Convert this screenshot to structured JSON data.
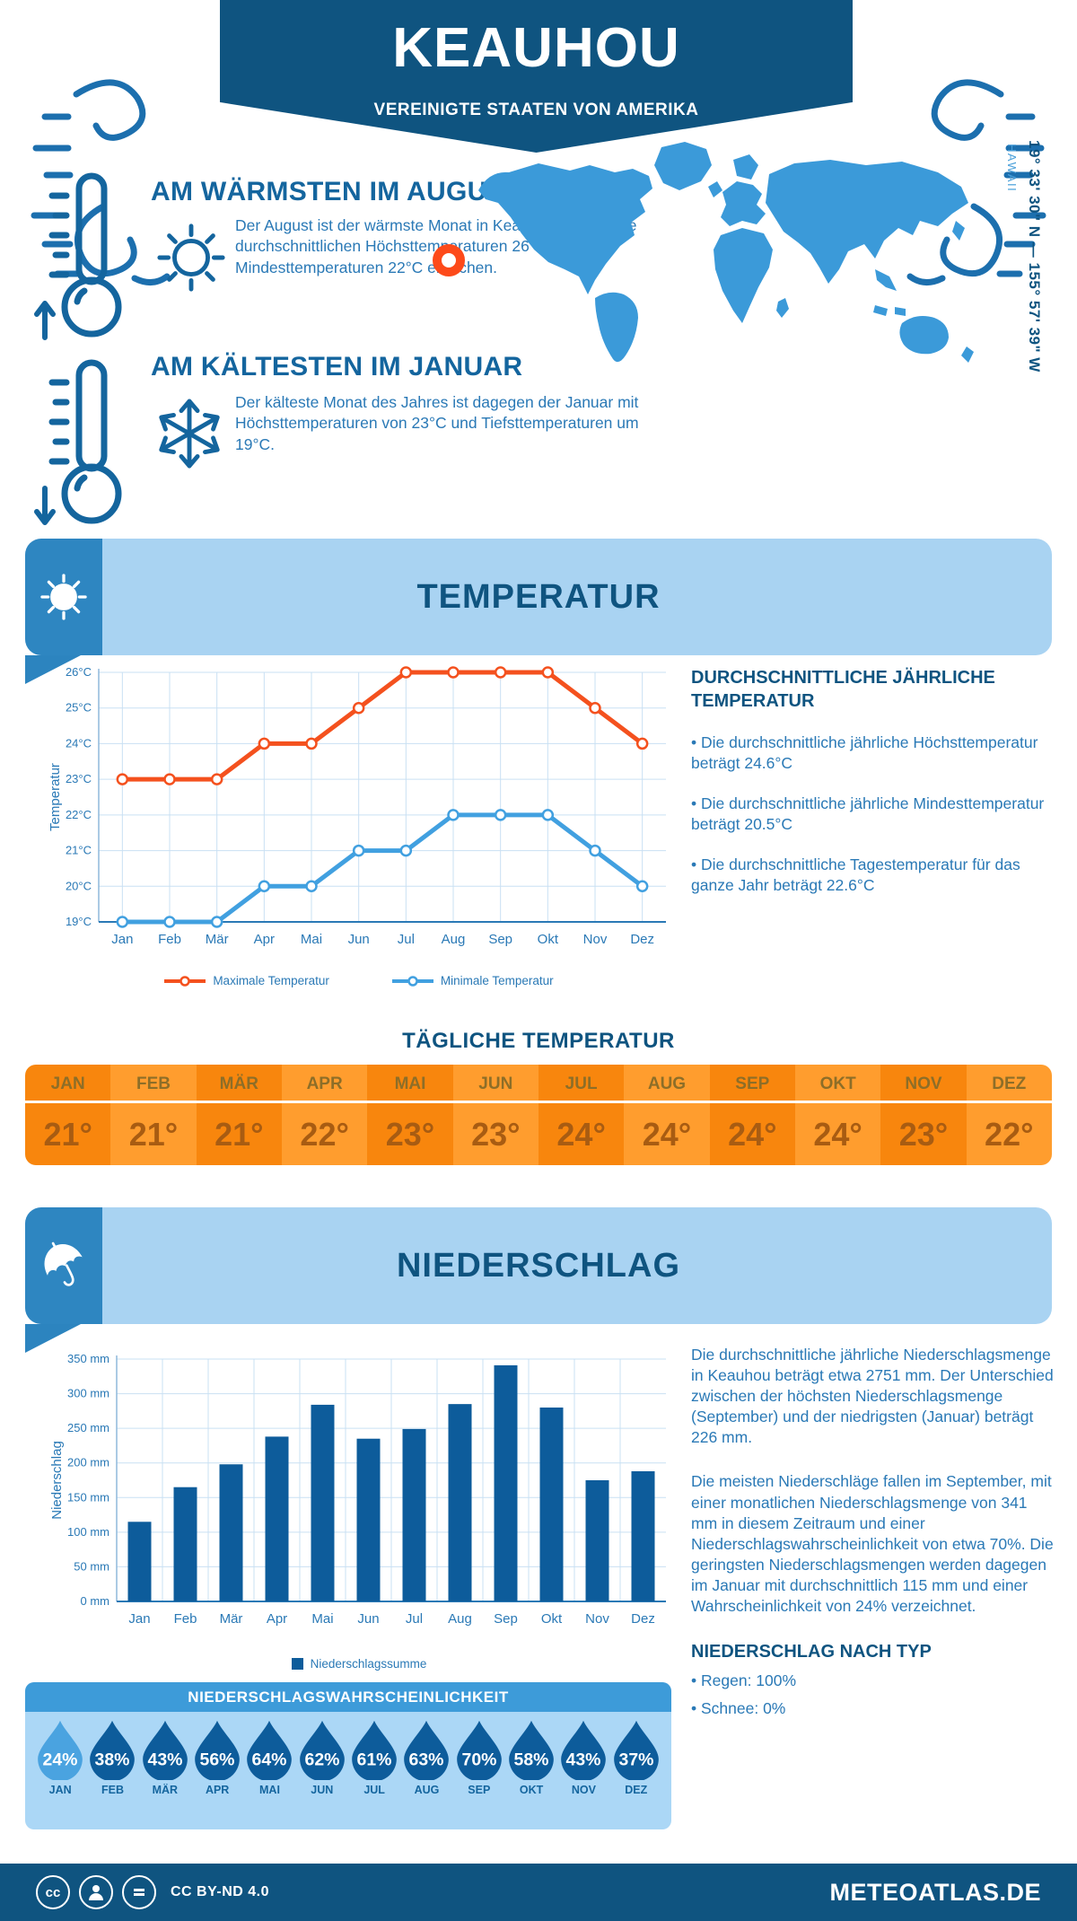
{
  "header": {
    "title": "KEAUHOU",
    "subtitle": "VEREINIGTE STAATEN VON AMERIKA"
  },
  "location": {
    "coordinates": "19° 33' 30\" N — 155° 57' 39\" W",
    "region": "HAWAII"
  },
  "highlights": {
    "warmest": {
      "title": "AM WÄRMSTEN IM AUGUST",
      "text": "Der August ist der wärmste Monat in Keauhou, in dem die durchschnittlichen Höchsttemperaturen 26°C und die Mindesttemperaturen 22°C erreichen."
    },
    "coldest": {
      "title": "AM KÄLTESTEN IM JANUAR",
      "text": "Der kälteste Monat des Jahres ist dagegen der Januar mit Höchsttemperaturen von 23°C und Tiefsttemperaturen um 19°C."
    }
  },
  "temperature": {
    "banner_title": "TEMPERATUR",
    "stats_title": "DURCHSCHNITTLICHE JÄHRLICHE TEMPERATUR",
    "bullets": [
      "Die durchschnittliche jährliche Höchsttemperatur beträgt 24.6°C",
      "Die durchschnittliche jährliche Mindesttemperatur beträgt 20.5°C",
      "Die durchschnittliche Tagestemperatur für das ganze Jahr beträgt 22.6°C"
    ]
  },
  "daily_table": {
    "title": "TÄGLICHE TEMPERATUR",
    "months": [
      "JAN",
      "FEB",
      "MÄR",
      "APR",
      "MAI",
      "JUN",
      "JUL",
      "AUG",
      "SEP",
      "OKT",
      "NOV",
      "DEZ"
    ],
    "values": [
      "21°",
      "21°",
      "21°",
      "22°",
      "23°",
      "23°",
      "24°",
      "24°",
      "24°",
      "24°",
      "23°",
      "22°"
    ]
  },
  "precipitation": {
    "banner_title": "NIEDERSCHLAG",
    "paragraphs": [
      "Die durchschnittliche jährliche Niederschlagsmenge in Keauhou beträgt etwa 2751 mm. Der Unterschied zwischen der höchsten Niederschlagsmenge (September) und der niedrigsten (Januar) beträgt 226 mm.",
      "Die meisten Niederschläge fallen im September, mit einer monatlichen Niederschlagsmenge von 341 mm in diesem Zeitraum und einer Niederschlagswahrscheinlichkeit von etwa 70%. Die geringsten Niederschlagsmengen werden dagegen im Januar mit durchschnittlich 115 mm und einer Wahrscheinlichkeit von 24% verzeichnet."
    ],
    "type_title": "NIEDERSCHLAG NACH TYP",
    "bullets": [
      "Regen: 100%",
      "Schnee: 0%"
    ]
  },
  "probability": {
    "title": "NIEDERSCHLAGSWAHRSCHEINLICHKEIT",
    "months": [
      "JAN",
      "FEB",
      "MÄR",
      "APR",
      "MAI",
      "JUN",
      "JUL",
      "AUG",
      "SEP",
      "OKT",
      "NOV",
      "DEZ"
    ],
    "values": [
      24,
      38,
      43,
      56,
      64,
      62,
      61,
      63,
      70,
      58,
      43,
      37
    ],
    "suffix": "%",
    "highlight_month_index": 0,
    "drop_color": "#0d5c9b",
    "drop_color_highlight": "#4aa3e0"
  },
  "footer": {
    "license": "CC BY-ND 4.0",
    "site": "METEOATLAS.DE"
  },
  "chart_data": [
    {
      "type": "line",
      "x": [
        "Jan",
        "Feb",
        "Mär",
        "Apr",
        "Mai",
        "Jun",
        "Jul",
        "Aug",
        "Sep",
        "Okt",
        "Nov",
        "Dez"
      ],
      "series": [
        {
          "name": "Maximale Temperatur",
          "values": [
            23,
            23,
            23,
            24,
            24,
            25,
            26,
            26,
            26,
            26,
            25,
            24
          ],
          "color": "#f4511e"
        },
        {
          "name": "Minimale Temperatur",
          "values": [
            19,
            19,
            19,
            20,
            20,
            21,
            21,
            22,
            22,
            22,
            21,
            20
          ],
          "color": "#41a0e0"
        }
      ],
      "ylabel": "Temperatur",
      "ylim": [
        19,
        26
      ],
      "ytick_step": 1,
      "yunit": "°C",
      "grid": true,
      "legend_position": "bottom"
    },
    {
      "type": "bar",
      "x": [
        "Jan",
        "Feb",
        "Mär",
        "Apr",
        "Mai",
        "Jun",
        "Jul",
        "Aug",
        "Sep",
        "Okt",
        "Nov",
        "Dez"
      ],
      "values": [
        115,
        165,
        198,
        238,
        284,
        235,
        249,
        285,
        341,
        280,
        175,
        188
      ],
      "bar_color": "#0d5c9b",
      "ylabel": "Niederschlag",
      "ylim": [
        0,
        350
      ],
      "ytick_step": 50,
      "yunit": " mm",
      "legend": "Niederschlagssumme",
      "grid": true
    }
  ],
  "colors": {
    "navy": "#0f5480",
    "heading_blue": "#14659e",
    "body_blue": "#2a79b6",
    "light_panel": "#a9d3f2",
    "band_blue": "#2e86c1",
    "map_blue": "#3b9ad9",
    "marker_orange": "#fd4a1a",
    "table_orange_a": "#f8860d",
    "table_orange_b": "#ff9d2e",
    "table_month_text": "#8d6e28",
    "table_value_text": "#a85c12",
    "prob_header_blue": "#3d9bd9"
  }
}
